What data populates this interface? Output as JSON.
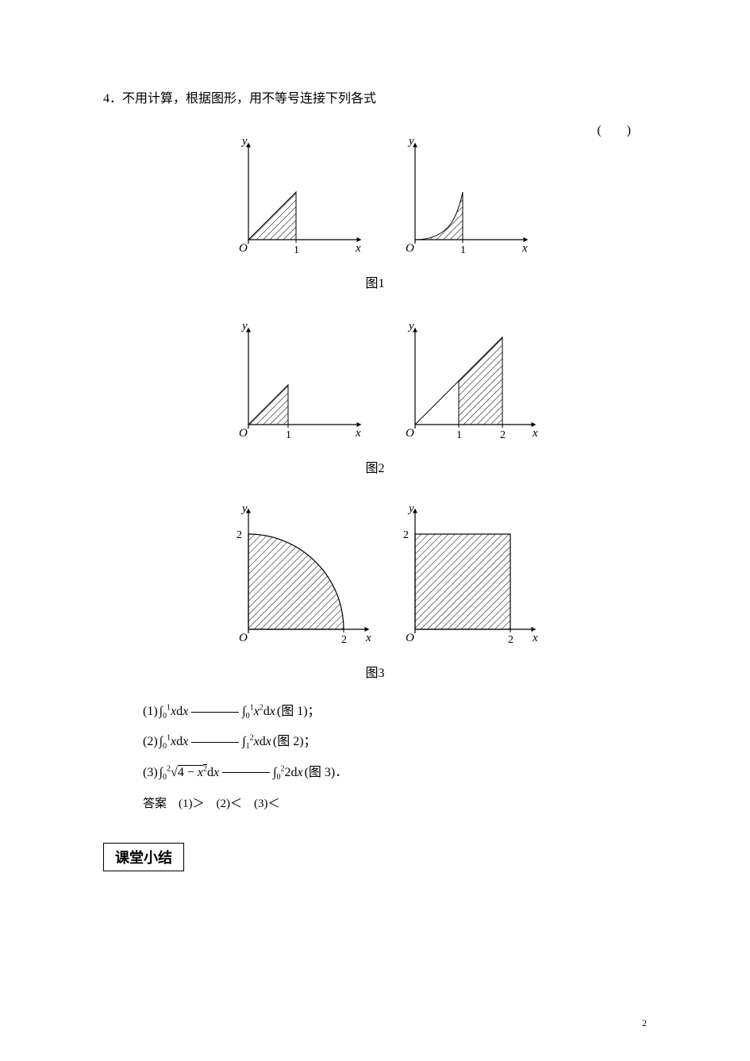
{
  "question_number": "4．",
  "question_text": "不用计算，根据图形，用不等号连接下列各式",
  "paren": "(　　)",
  "figures": {
    "fig1": {
      "caption": "图1",
      "left": {
        "type": "triangle_hatch",
        "x_axis": "x",
        "y_axis": "y",
        "origin": "O",
        "tick": "1"
      },
      "right": {
        "type": "parabola_hatch",
        "x_axis": "x",
        "y_axis": "y",
        "origin": "O",
        "tick": "1"
      }
    },
    "fig2": {
      "caption": "图2",
      "left": {
        "type": "triangle_hatch",
        "x_axis": "x",
        "y_axis": "y",
        "origin": "O",
        "tick": "1"
      },
      "right": {
        "type": "trapezoid_hatch",
        "x számokat_axis": "x",
        "y_axis": "y",
        "origin": "O",
        "tick1": "1",
        "tick2": "2"
      }
    },
    "fig3": {
      "caption": "图3",
      "left": {
        "type": "quarter_circle_hatch",
        "x_axis": "x",
        "y_axis": "y",
        "origin": "O",
        "r": "2",
        "ytick": "2"
      },
      "right": {
        "type": "square_hatch",
        "x_axis": "x",
        "y_axis": "y",
        "origin": "O",
        "side": "2",
        "ytick": "2"
      }
    },
    "style": {
      "stroke": "#000000",
      "hatch_stroke": "#000000",
      "hatch_width": 1,
      "axis_width": 1.2,
      "font": "italic 14px Times New Roman"
    }
  },
  "formulas": {
    "row1": {
      "prefix": "(1) ",
      "lhs_html": "∫<span class='sub'>0</span><span class='sup'>1</span><i>x</i>d<i>x</i>",
      "rhs_html": "∫<span class='sub'>0</span><span class='sup'>1</span><i>x</i><span class='sup'>2</span>d<i>x</i>",
      "fig_ref": "(图 1)；"
    },
    "row2": {
      "prefix": "(2) ",
      "lhs_html": "∫<span class='sub'>0</span><span class='sup'>1</span><i>x</i>d<i>x</i>",
      "rhs_html": "∫<span class='sub'>1</span><span class='sup'>2</span><i>x</i>d<i>x</i>",
      "fig_ref": "(图 2)；"
    },
    "row3": {
      "prefix": "(3) ",
      "lhs_html": "∫<span class='sub'>0</span><span class='sup'>2</span>√<span style='text-decoration:overline'>4 − <i>x</i><span class='sup'>2</span></span>d<i>x</i>",
      "rhs_html": "∫<span class='sub'>0</span><span class='sup'>2</span>2d<i>x</i>",
      "fig_ref": "(图 3)．"
    }
  },
  "answer_label": "答案",
  "answers": "　(1)＞　(2)＜　(3)＜",
  "summary_box": "课堂小结",
  "page_number": "2"
}
